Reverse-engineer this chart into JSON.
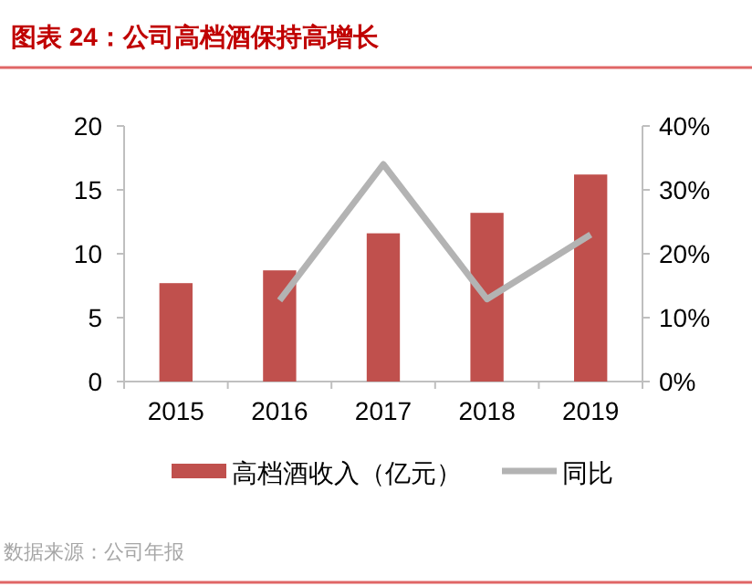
{
  "chart_data": {
    "type": "bar",
    "title": "图表 24：公司高档酒保持高增长",
    "categories": [
      "2015",
      "2016",
      "2017",
      "2018",
      "2019"
    ],
    "series": [
      {
        "name": "高档酒收入（亿元）",
        "color": "#c0504d",
        "values": [
          7.7,
          8.7,
          11.6,
          13.2,
          16.2
        ]
      },
      {
        "name": "同比",
        "type": "line",
        "axis": "y2",
        "color": "#b3b3b3",
        "values": [
          null,
          12.7,
          34,
          12.9,
          23
        ]
      }
    ],
    "ylim": [
      0,
      20
    ],
    "yticks": [
      0,
      5,
      10,
      15,
      20
    ],
    "y2lim": [
      0,
      40
    ],
    "y2ticks": [
      {
        "value": 0,
        "label": "0%"
      },
      {
        "value": 10,
        "label": "10%"
      },
      {
        "value": 20,
        "label": "20%"
      },
      {
        "value": 30,
        "label": "30%"
      },
      {
        "value": 40,
        "label": "40%"
      }
    ],
    "grid": false,
    "legend": "bottom",
    "annotations": [
      "数据来源：公司年报"
    ]
  }
}
